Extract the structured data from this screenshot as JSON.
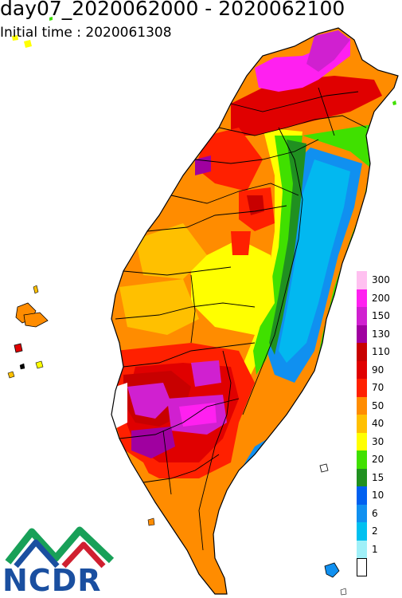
{
  "header": {
    "title": "day07_2020062000 - 2020062100",
    "subtitle": "Initial time : 2020061308"
  },
  "legend": {
    "items": [
      {
        "label": "300",
        "color": "#ffc0f0"
      },
      {
        "label": "200",
        "color": "#ff20f0"
      },
      {
        "label": "150",
        "color": "#d020d0"
      },
      {
        "label": "130",
        "color": "#a000a0"
      },
      {
        "label": "110",
        "color": "#c80000"
      },
      {
        "label": "90",
        "color": "#e00000"
      },
      {
        "label": "70",
        "color": "#ff2000"
      },
      {
        "label": "50",
        "color": "#ff8c00"
      },
      {
        "label": "40",
        "color": "#ffc000"
      },
      {
        "label": "30",
        "color": "#ffff00"
      },
      {
        "label": "20",
        "color": "#40e000"
      },
      {
        "label": "15",
        "color": "#209020"
      },
      {
        "label": "10",
        "color": "#0060f0"
      },
      {
        "label": "6",
        "color": "#1090f0"
      },
      {
        "label": "2",
        "color": "#00c0f0"
      },
      {
        "label": "1",
        "color": "#a0f0f8"
      },
      {
        "label": "",
        "color": "#ffffff"
      }
    ]
  },
  "logo": {
    "text": "NCDR"
  }
}
